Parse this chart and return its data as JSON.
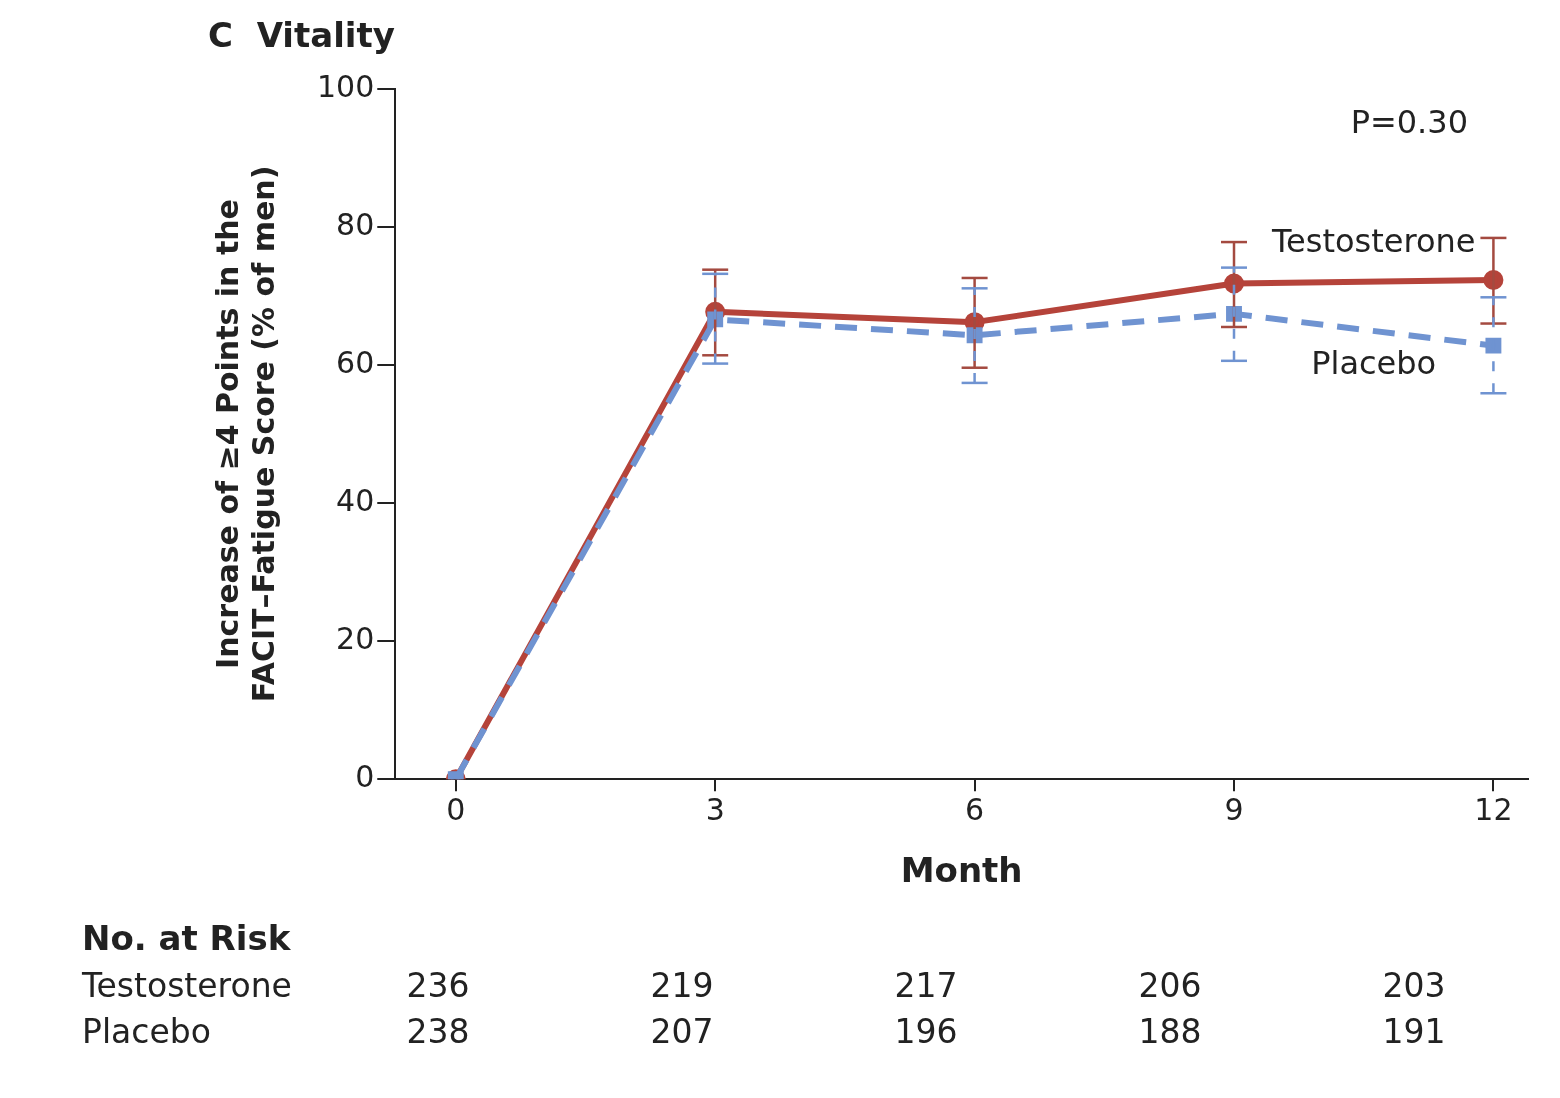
{
  "chart_data": {
    "type": "line",
    "title": "C  Vitality",
    "xlabel": "Month",
    "ylabel": "Increase of ≥4 Points in the FACIT–Fatigue Score (% of men)",
    "x": [
      0,
      3,
      6,
      9,
      12
    ],
    "xlim": [
      -0.7,
      12.4
    ],
    "xticks": [
      0,
      3,
      6,
      9,
      12
    ],
    "ylim": [
      0,
      100
    ],
    "yticks": [
      0,
      20,
      40,
      60,
      80,
      100
    ],
    "grid": false,
    "legend": false,
    "series": [
      {
        "name": "Testosterone",
        "color": "#b5433a",
        "marker": "circle",
        "line_style": "solid",
        "values": [
          0,
          67.7,
          66.2,
          71.8,
          72.3
        ],
        "errors": [
          null,
          [
            61.4,
            73.8
          ],
          [
            59.6,
            72.6
          ],
          [
            65.5,
            77.8
          ],
          [
            66.0,
            78.4
          ]
        ]
      },
      {
        "name": "Placebo",
        "color": "#6f93d1",
        "marker": "square",
        "line_style": "dashed",
        "values": [
          0,
          66.6,
          64.3,
          67.4,
          62.8
        ],
        "errors": [
          null,
          [
            60.2,
            73.2
          ],
          [
            57.4,
            71.1
          ],
          [
            60.6,
            74.1
          ],
          [
            55.9,
            69.8
          ]
        ]
      }
    ],
    "annotations": [
      "P=0.30",
      "No. at Risk",
      "Testosterone",
      "236",
      "219",
      "217",
      "206",
      "203",
      "Placebo",
      "238",
      "207",
      "196",
      "188",
      "191"
    ]
  }
}
